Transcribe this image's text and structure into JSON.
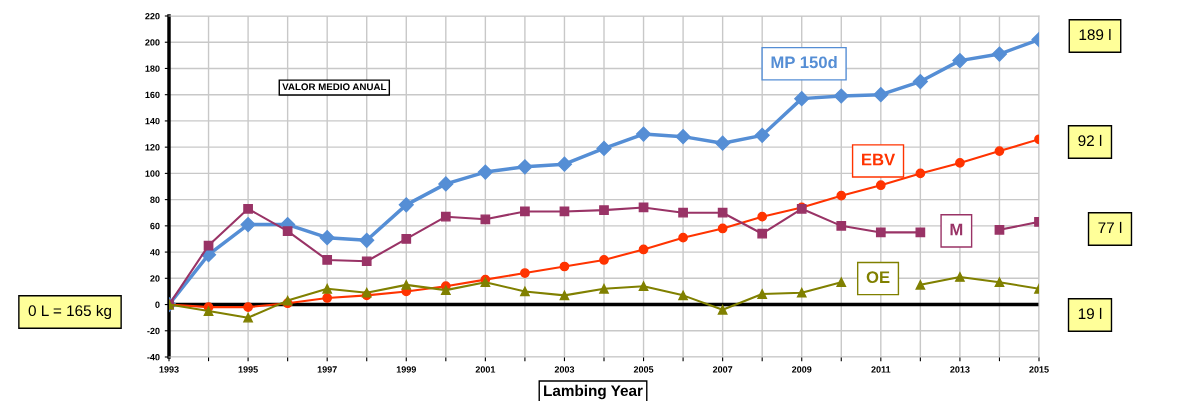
{
  "chart_data": {
    "type": "line",
    "xlabel": "Lambing Year",
    "x": [
      1993,
      1994,
      1995,
      1996,
      1997,
      1998,
      1999,
      2000,
      2001,
      2002,
      2003,
      2004,
      2005,
      2006,
      2007,
      2008,
      2009,
      2010,
      2011,
      2012,
      2013,
      2014,
      2015
    ],
    "series": [
      {
        "name": "MP 150d",
        "color": "#558ed5",
        "marker": "diamond",
        "values": [
          0,
          38,
          61,
          61,
          51,
          49,
          76,
          92,
          101,
          105,
          107,
          119,
          130,
          128,
          123,
          129,
          157,
          159,
          160,
          170,
          186,
          191,
          202
        ]
      },
      {
        "name": "EBV",
        "color": "#ff3300",
        "marker": "circle",
        "values": [
          0,
          -2,
          -2,
          1,
          5,
          7,
          10,
          14,
          19,
          24,
          29,
          34,
          42,
          51,
          58,
          67,
          74,
          83,
          91,
          100,
          108,
          117,
          126
        ]
      },
      {
        "name": "M",
        "color": "#993366",
        "marker": "square",
        "values": [
          0,
          45,
          73,
          56,
          34,
          33,
          50,
          67,
          65,
          71,
          71,
          72,
          74,
          70,
          70,
          54,
          73,
          60,
          55,
          55,
          null,
          57,
          63
        ]
      },
      {
        "name": "OE",
        "color": "#808000",
        "marker": "triangle",
        "values": [
          0,
          -5,
          -10,
          3,
          12,
          9,
          15,
          11,
          17,
          10,
          7,
          12,
          14,
          7,
          -4,
          8,
          9,
          17,
          null,
          15,
          21,
          17,
          12
        ]
      }
    ],
    "xlim": [
      1993,
      2015
    ],
    "xticks": [
      1993,
      {
        "value": 1994,
        "label": null
      },
      1995,
      {
        "value": 1996,
        "label": null
      },
      1997,
      {
        "value": 1998,
        "label": null
      },
      1999,
      {
        "value": 2000,
        "label": null
      },
      2001,
      {
        "value": 2002,
        "label": null
      },
      2003,
      {
        "value": 2004,
        "label": null
      },
      2005,
      {
        "value": 2006,
        "label": null
      },
      2007,
      {
        "value": 2008,
        "label": null
      },
      2009,
      {
        "value": 2010,
        "label": null
      },
      2011,
      {
        "value": 2012,
        "label": null
      },
      2013,
      {
        "value": 2014,
        "label": null
      },
      2015
    ],
    "ylim": [
      -40,
      220
    ],
    "yticks": [
      -40,
      -20,
      0,
      20,
      40,
      60,
      80,
      100,
      120,
      140,
      160,
      180,
      200,
      220
    ],
    "grid": true,
    "ref_lines": [
      {
        "axis": "y",
        "value": 0,
        "color": "#000000"
      }
    ],
    "annotations": [
      "VALOR MEDIO ANUAL",
      "0 L = 165 kg",
      "189 l",
      "92 l",
      "77 l",
      "19 l"
    ]
  }
}
